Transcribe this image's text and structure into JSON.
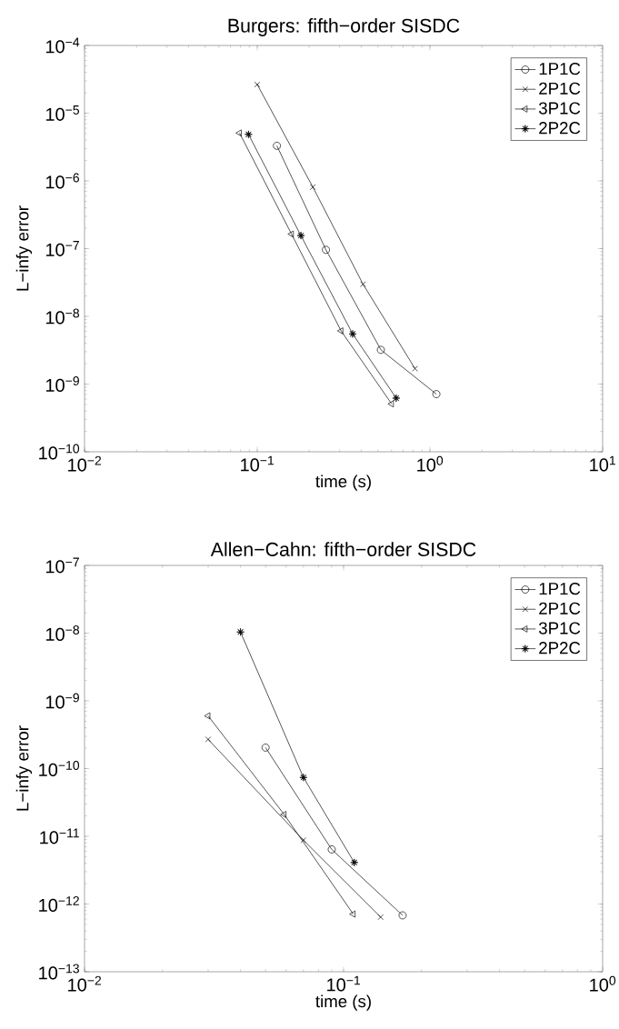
{
  "chart_data": [
    {
      "type": "line",
      "title": "Burgers: fifth−order SISDC",
      "xlabel": "time (s)",
      "ylabel": "L−infy error",
      "log": "xy",
      "legend": "top right",
      "line_style": "solid",
      "xlim": [
        0.01,
        10
      ],
      "ylim": [
        1e-10,
        0.0001
      ],
      "xticks": [
        {
          "value": 0.01,
          "label": "10$^{−2}$"
        },
        {
          "value": 0.1,
          "label": "10$^{−1}$"
        },
        {
          "value": 1,
          "label": "10$^{0}$"
        },
        {
          "value": 10,
          "label": "10$^{1}$"
        }
      ],
      "yticks": [
        {
          "value": 1e-10,
          "label": "10$^{−10}$"
        },
        {
          "value": 1e-09,
          "label": "10$^{−9}$"
        },
        {
          "value": 1e-08,
          "label": "10$^{−8}$"
        },
        {
          "value": 1e-07,
          "label": "10$^{−7}$"
        },
        {
          "value": 1e-06,
          "label": "10$^{−6}$"
        },
        {
          "value": 1e-05,
          "label": "10$^{−5}$"
        },
        {
          "value": 0.0001,
          "label": "10$^{−4}$"
        }
      ],
      "series": [
        {
          "name": "1P1C",
          "color": "#000000",
          "marker": "circle",
          "x": [
            0.13,
            0.25,
            0.52,
            1.09
          ],
          "values": [
            3.3e-06,
            9.6e-08,
            3.2e-09,
            7.1e-10
          ]
        },
        {
          "name": "2P1C",
          "color": "#000000",
          "marker": "cross",
          "x": [
            0.1,
            0.21,
            0.41,
            0.82
          ],
          "values": [
            2.65e-05,
            8.1e-07,
            2.98e-08,
            1.69e-09
          ]
        },
        {
          "name": "3P1C",
          "color": "#000000",
          "marker": "triangle",
          "x": [
            0.079,
            0.158,
            0.306,
            0.6
          ],
          "values": [
            5.1e-06,
            1.64e-07,
            6.1e-09,
            5.1e-10
          ]
        },
        {
          "name": "2P2C",
          "color": "#000000",
          "marker": "star",
          "x": [
            0.089,
            0.179,
            0.357,
            0.638
          ],
          "values": [
            4.86e-06,
            1.56e-07,
            5.5e-09,
            6.2e-10
          ]
        }
      ]
    },
    {
      "type": "line",
      "title": "Allen−Cahn: fifth−order SISDC",
      "xlabel": "time (s)",
      "ylabel": "L−infy error",
      "log": "xy",
      "legend": "top right",
      "line_style": "solid",
      "xlim": [
        0.01,
        1
      ],
      "ylim": [
        1e-13,
        1e-07
      ],
      "xticks": [
        {
          "value": 0.01,
          "label": "10$^{−2}$"
        },
        {
          "value": 0.1,
          "label": "10$^{−1}$"
        },
        {
          "value": 1,
          "label": "10$^{0}$"
        }
      ],
      "yticks": [
        {
          "value": 1e-13,
          "label": "10$^{−13}$"
        },
        {
          "value": 1e-12,
          "label": "10$^{−12}$"
        },
        {
          "value": 1e-11,
          "label": "10$^{−11}$"
        },
        {
          "value": 1e-10,
          "label": "10$^{−10}$"
        },
        {
          "value": 1e-09,
          "label": "10$^{−9}$"
        },
        {
          "value": 1e-08,
          "label": "10$^{−8}$"
        },
        {
          "value": 1e-07,
          "label": "10$^{−7}$"
        }
      ],
      "series": [
        {
          "name": "1P1C",
          "color": "#000000",
          "marker": "circle",
          "x": [
            0.05,
            0.09,
            0.169
          ],
          "values": [
            2.04e-10,
            6.4e-12,
            6.8e-13
          ]
        },
        {
          "name": "2P1C",
          "color": "#000000",
          "marker": "cross",
          "x": [
            0.03,
            0.07,
            0.139
          ],
          "values": [
            2.7e-10,
            8.75e-12,
            6.4e-13
          ]
        },
        {
          "name": "3P1C",
          "color": "#000000",
          "marker": "triangle",
          "x": [
            0.03,
            0.059,
            0.109
          ],
          "values": [
            6e-10,
            2.1e-11,
            7.1e-13
          ]
        },
        {
          "name": "2P2C",
          "color": "#000000",
          "marker": "star",
          "x": [
            0.04,
            0.07,
            0.11
          ],
          "values": [
            1.04e-08,
            7.4e-11,
            4.1e-12
          ]
        }
      ]
    }
  ]
}
